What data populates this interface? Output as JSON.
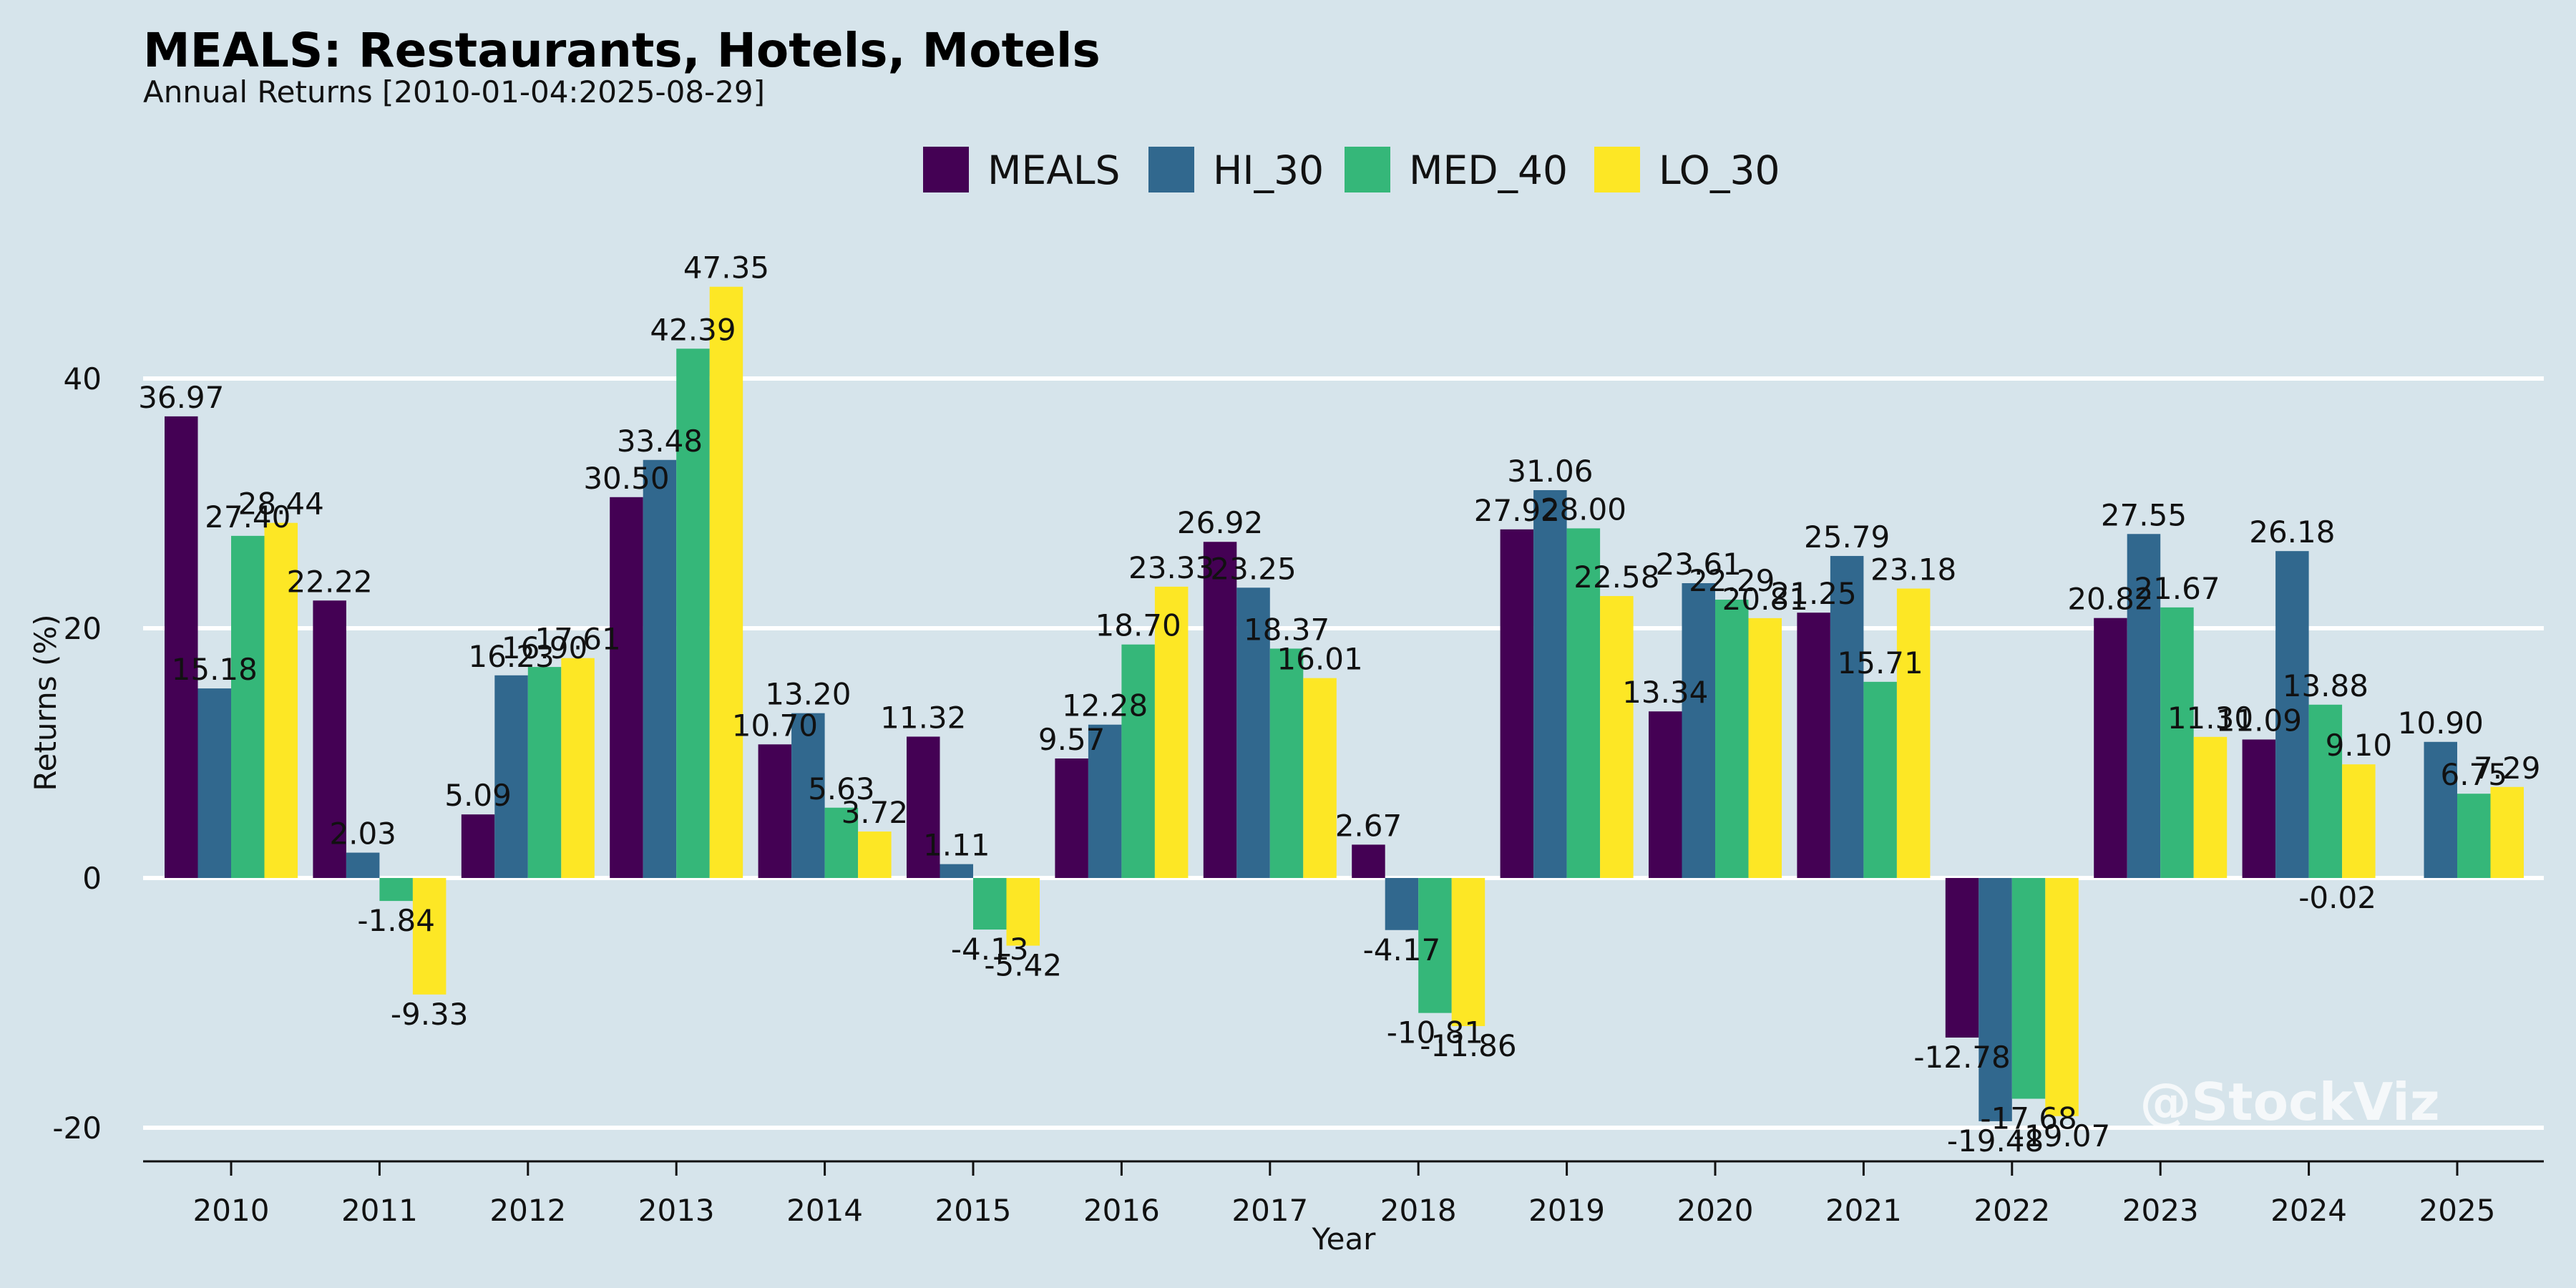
{
  "chart_data": {
    "type": "bar",
    "title": "MEALS: Restaurants, Hotels, Motels",
    "subtitle": "Annual Returns [2010-01-04:2025-08-29]",
    "xlabel": "Year",
    "ylabel": "Returns (%)",
    "watermark": "@StockViz",
    "categories": [
      "2010",
      "2011",
      "2012",
      "2013",
      "2014",
      "2015",
      "2016",
      "2017",
      "2018",
      "2019",
      "2020",
      "2021",
      "2022",
      "2023",
      "2024",
      "2025"
    ],
    "series": [
      {
        "name": "MEALS",
        "color": "#440154",
        "values": [
          36.97,
          22.22,
          5.09,
          30.5,
          10.7,
          11.32,
          9.57,
          26.92,
          2.67,
          27.92,
          13.34,
          21.25,
          -12.78,
          20.82,
          11.09,
          null
        ]
      },
      {
        "name": "HI_30",
        "color": "#31688e",
        "values": [
          15.18,
          2.03,
          16.23,
          33.48,
          13.2,
          1.11,
          12.28,
          23.25,
          -4.17,
          31.06,
          23.61,
          25.79,
          -19.48,
          27.55,
          26.18,
          10.9
        ]
      },
      {
        "name": "MED_40",
        "color": "#35b779",
        "values": [
          27.4,
          -1.84,
          16.9,
          42.39,
          5.63,
          -4.13,
          18.7,
          18.37,
          -10.81,
          28.0,
          22.29,
          15.71,
          -17.68,
          21.67,
          13.88,
          6.75
        ]
      },
      {
        "name": "LO_30",
        "color": "#fde725",
        "values": [
          28.44,
          -9.33,
          17.61,
          47.35,
          3.72,
          -5.42,
          23.33,
          16.01,
          -11.86,
          22.58,
          20.81,
          23.18,
          -19.07,
          11.3,
          9.1,
          7.29
        ]
      }
    ],
    "extra_labels": [
      {
        "category": "2024",
        "text": "-0.02"
      }
    ],
    "yticks": [
      -20,
      0,
      20,
      40
    ],
    "ylim": [
      -23,
      50
    ],
    "grid": true,
    "legend_position": "top-center"
  }
}
